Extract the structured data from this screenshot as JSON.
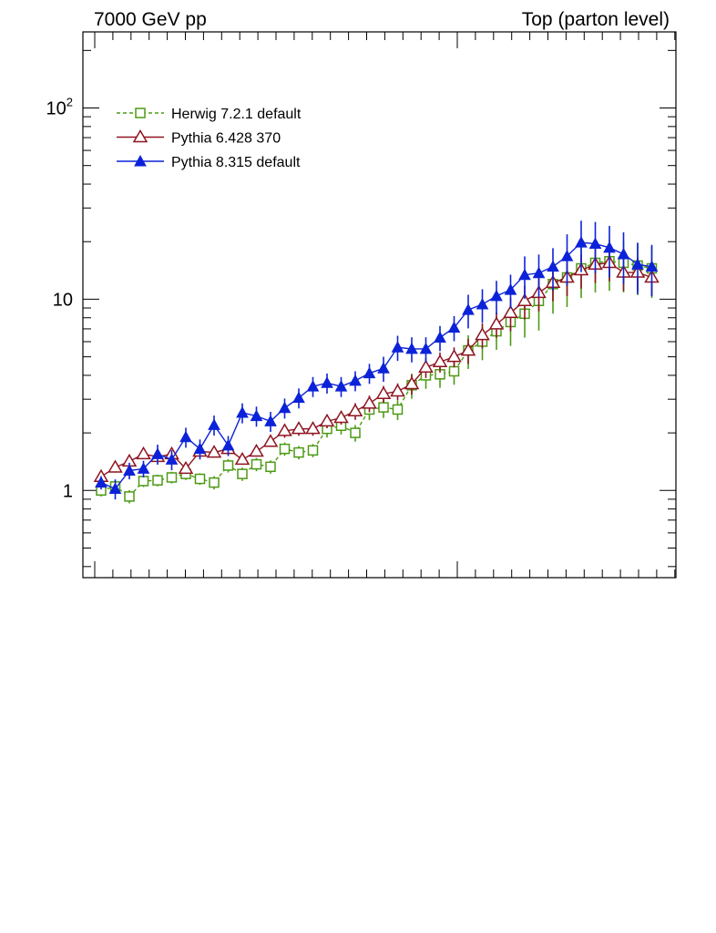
{
  "header": {
    "left_label": "7000 GeV pp",
    "right_label": "Top (parton level)"
  },
  "chart_data": {
    "type": "line",
    "title": "",
    "xlabel": "",
    "ylabel": "",
    "yscale": "log",
    "ylim": [
      0.35,
      250
    ],
    "x": [
      1,
      2,
      3,
      4,
      5,
      6,
      7,
      8,
      9,
      10,
      11,
      12,
      13,
      14,
      15,
      16,
      17,
      18,
      19,
      20,
      21,
      22,
      23,
      24,
      25,
      26,
      27,
      28,
      29,
      30,
      31,
      32,
      33,
      34,
      35,
      36,
      37,
      38,
      39,
      40
    ],
    "yticks": [
      {
        "value": 1,
        "base": "1",
        "exp": ""
      },
      {
        "value": 10,
        "base": "10",
        "exp": ""
      },
      {
        "value": 100,
        "base": "10",
        "exp": "2"
      }
    ],
    "legend_position": "top-left",
    "series": [
      {
        "name": "Herwig 7.2.1 default",
        "color": "#4d9a14",
        "marker": "open-square",
        "line": "dashed",
        "values": [
          1.0,
          1.05,
          0.93,
          1.12,
          1.13,
          1.17,
          1.22,
          1.15,
          1.1,
          1.35,
          1.22,
          1.37,
          1.33,
          1.65,
          1.58,
          1.62,
          2.1,
          2.18,
          2.0,
          2.65,
          2.72,
          2.65,
          3.55,
          4.0,
          4.05,
          4.2,
          5.4,
          6.0,
          6.8,
          7.6,
          8.4,
          9.8,
          12.0,
          13.0,
          14.5,
          15.5,
          15.8,
          15.5,
          15.0,
          14.5
        ],
        "errors": [
          0.07,
          0.08,
          0.08,
          0.07,
          0.07,
          0.07,
          0.07,
          0.07,
          0.08,
          0.08,
          0.08,
          0.08,
          0.08,
          0.08,
          0.08,
          0.08,
          0.1,
          0.1,
          0.1,
          0.12,
          0.12,
          0.12,
          0.15,
          0.15,
          0.15,
          0.15,
          0.2,
          0.2,
          0.2,
          0.25,
          0.25,
          0.3,
          0.3,
          0.3,
          0.3,
          0.3,
          0.3,
          0.3,
          0.3,
          0.3
        ]
      },
      {
        "name": "Pythia 6.428 370",
        "color": "#8e1420",
        "marker": "open-triangle",
        "line": "solid",
        "values": [
          1.18,
          1.32,
          1.42,
          1.55,
          1.5,
          1.55,
          1.3,
          1.6,
          1.58,
          1.65,
          1.45,
          1.6,
          1.8,
          2.05,
          2.1,
          2.1,
          2.3,
          2.4,
          2.6,
          2.85,
          3.2,
          3.3,
          3.6,
          4.4,
          4.7,
          5.0,
          5.4,
          6.5,
          7.4,
          8.5,
          9.8,
          10.8,
          12.2,
          13.0,
          14.2,
          15.2,
          15.5,
          13.8,
          13.8,
          13.0
        ],
        "errors": [
          0.06,
          0.06,
          0.06,
          0.06,
          0.06,
          0.06,
          0.06,
          0.06,
          0.06,
          0.06,
          0.06,
          0.06,
          0.06,
          0.08,
          0.08,
          0.08,
          0.08,
          0.08,
          0.1,
          0.1,
          0.1,
          0.1,
          0.12,
          0.12,
          0.12,
          0.12,
          0.15,
          0.15,
          0.15,
          0.2,
          0.2,
          0.2,
          0.2,
          0.2,
          0.2,
          0.2,
          0.2,
          0.2,
          0.2,
          0.2
        ]
      },
      {
        "name": "Pythia 8.315 default",
        "color": "#0c22d8",
        "marker": "filled-triangle",
        "line": "solid",
        "values": [
          1.1,
          1.02,
          1.27,
          1.3,
          1.55,
          1.45,
          1.9,
          1.65,
          2.2,
          1.72,
          2.55,
          2.45,
          2.3,
          2.7,
          3.05,
          3.5,
          3.65,
          3.5,
          3.75,
          4.1,
          4.35,
          5.6,
          5.5,
          5.5,
          6.3,
          7.1,
          8.8,
          9.4,
          10.4,
          11.2,
          13.4,
          13.7,
          14.8,
          16.8,
          19.8,
          19.5,
          18.6,
          17.2,
          15.2,
          14.8
        ],
        "errors": [
          0.08,
          0.12,
          0.1,
          0.1,
          0.12,
          0.12,
          0.12,
          0.12,
          0.12,
          0.12,
          0.12,
          0.12,
          0.12,
          0.12,
          0.12,
          0.12,
          0.12,
          0.12,
          0.12,
          0.12,
          0.15,
          0.15,
          0.15,
          0.15,
          0.15,
          0.15,
          0.2,
          0.2,
          0.2,
          0.2,
          0.25,
          0.25,
          0.25,
          0.3,
          0.3,
          0.3,
          0.3,
          0.3,
          0.3,
          0.3
        ]
      }
    ]
  }
}
